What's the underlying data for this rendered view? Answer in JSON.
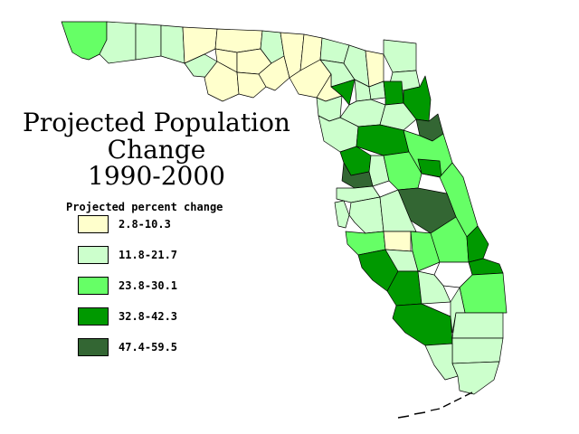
{
  "map": {
    "title_lines": [
      "Projected Population",
      "Change",
      "1990-2000"
    ],
    "legend": {
      "title": "Projected percent change",
      "items": [
        {
          "label": "2.8-10.3",
          "color": "#ffffcc"
        },
        {
          "label": "11.8-21.7",
          "color": "#ccffcc"
        },
        {
          "label": "23.8-30.1",
          "color": "#66ff66"
        },
        {
          "label": "32.8-42.3",
          "color": "#009900"
        },
        {
          "label": "47.4-59.5",
          "color": "#336633"
        }
      ]
    }
  }
}
